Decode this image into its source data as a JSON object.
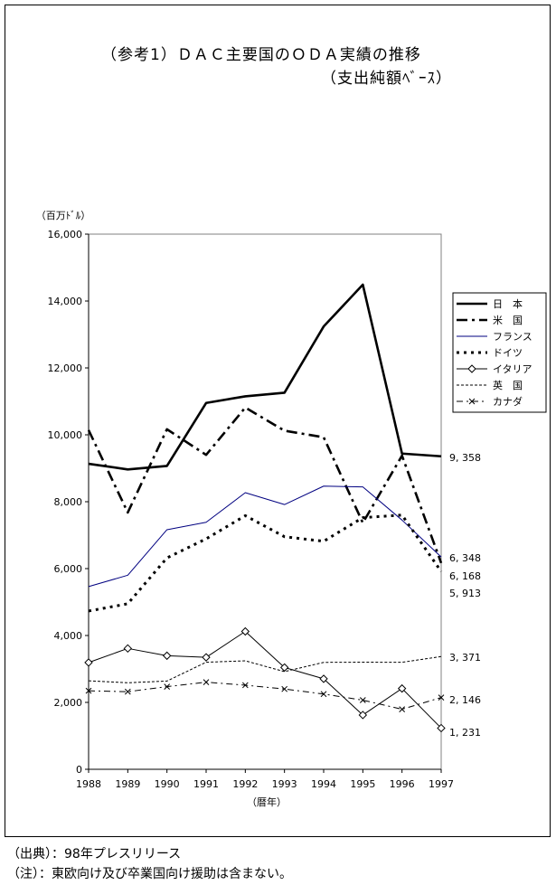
{
  "title_line1": "（参考1）ＤＡＣ主要国のＯＤＡ実績の推移",
  "title_line2": "（支出純額ﾍﾞｰｽ）",
  "footnotes": {
    "source": "（出典）：98年プレスリリース",
    "note": "（注）：東欧向け及び卒業国向け援助は含まない。"
  },
  "chart_data": {
    "type": "line",
    "ylabel": "（百万ﾄﾞﾙ）",
    "xlabel": "（暦年）",
    "ylim": [
      0,
      16000
    ],
    "yticks": [
      0,
      2000,
      4000,
      6000,
      8000,
      10000,
      12000,
      14000,
      16000
    ],
    "ytick_labels": [
      "0",
      "2,000",
      "4,000",
      "6,000",
      "8,000",
      "10,000",
      "12,000",
      "14,000",
      "16,000"
    ],
    "x": [
      "1988",
      "1989",
      "1990",
      "1991",
      "1992",
      "1993",
      "1994",
      "1995",
      "1996",
      "1997"
    ],
    "grid": false,
    "legend_position": "right",
    "series": [
      {
        "name": "日　本",
        "color": "#000000",
        "style": "thick-solid",
        "marker": "none",
        "values": [
          9134,
          8965,
          9069,
          10952,
          11151,
          11259,
          13239,
          14489,
          9439,
          9358
        ]
      },
      {
        "name": "米　国",
        "color": "#000000",
        "style": "thick-dashdot",
        "marker": "none",
        "values": [
          10141,
          7677,
          10166,
          9400,
          10815,
          10123,
          9927,
          7367,
          9377,
          6168
        ]
      },
      {
        "name": "フランス",
        "color": "#000080",
        "style": "thin-solid",
        "marker": "none",
        "values": [
          5463,
          5802,
          7163,
          7386,
          8270,
          7915,
          8466,
          8443,
          7451,
          6348
        ]
      },
      {
        "name": "ドイツ",
        "color": "#000000",
        "style": "dotted",
        "marker": "none",
        "values": [
          4731,
          4949,
          6320,
          6890,
          7583,
          6954,
          6818,
          7524,
          7601,
          5913
        ]
      },
      {
        "name": "イタリア",
        "color": "#000000",
        "style": "thin-solid",
        "marker": "diamond",
        "values": [
          3193,
          3613,
          3395,
          3347,
          4122,
          3043,
          2705,
          1623,
          2416,
          1231
        ]
      },
      {
        "name": "英　国",
        "color": "#000000",
        "style": "fine-dashed",
        "marker": "none",
        "values": [
          2645,
          2587,
          2638,
          3201,
          3243,
          2920,
          3197,
          3202,
          3199,
          3371
        ]
      },
      {
        "name": "カナダ",
        "color": "#000000",
        "style": "dashdot",
        "marker": "cross",
        "values": [
          2347,
          2320,
          2470,
          2604,
          2515,
          2400,
          2250,
          2067,
          1795,
          2146
        ]
      }
    ],
    "end_labels": [
      "9, 358",
      "6, 348",
      "6, 168",
      "5, 913",
      "3, 371",
      "2, 146",
      "1, 231"
    ]
  }
}
